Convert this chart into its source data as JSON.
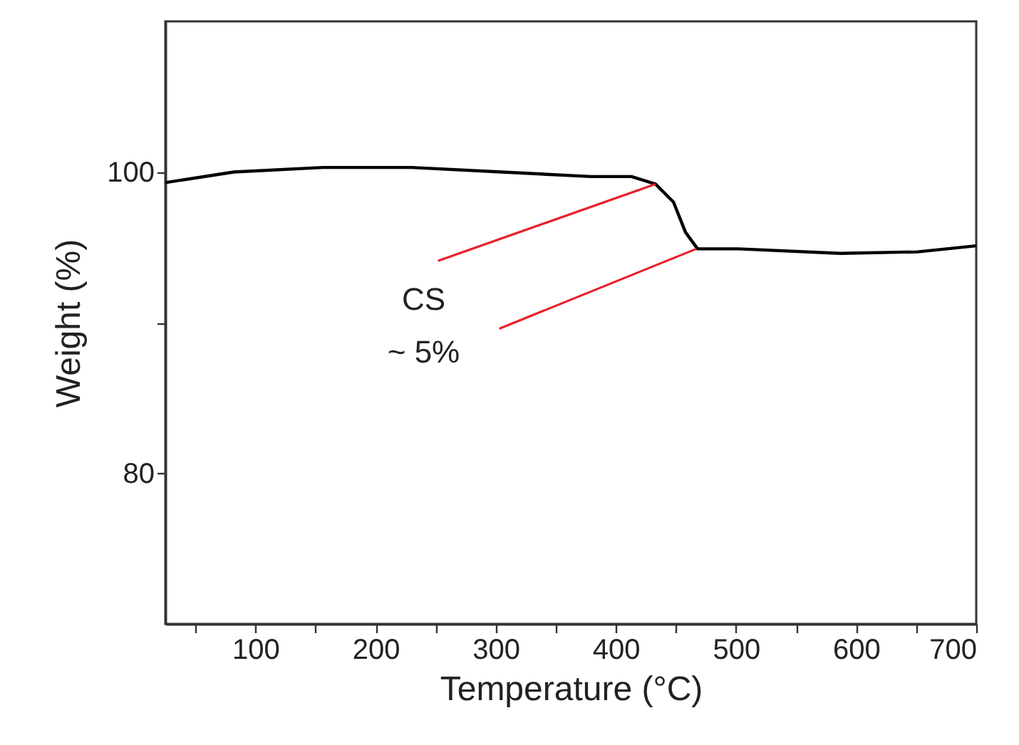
{
  "chart_data": {
    "type": "line",
    "xlabel": "Temperature (°C)",
    "ylabel": "Weight (%)",
    "annotations": [
      {
        "text": "CS",
        "x": 433,
        "y": 99.2
      },
      {
        "text": "~ 5%",
        "x": 467,
        "y": 94.9
      }
    ],
    "xlim": [
      25,
      700
    ],
    "xticks": [
      {
        "value": 50,
        "label": null
      },
      100,
      {
        "value": 150,
        "label": null
      },
      200,
      {
        "value": 250,
        "label": null
      },
      300,
      {
        "value": 350,
        "label": null
      },
      400,
      {
        "value": 450,
        "label": null
      },
      500,
      {
        "value": 550,
        "label": null
      },
      600,
      {
        "value": 650,
        "label": null
      },
      700
    ],
    "ylim": [
      70,
      110
    ],
    "yticks": [
      80,
      {
        "value": 90,
        "label": null
      },
      100
    ],
    "grid": false,
    "line_style": "solid",
    "series": [
      {
        "color": "#000000",
        "x": [
          25,
          82,
          156,
          230,
          305,
          379,
          413,
          433,
          448,
          458,
          468,
          502,
          587,
          651,
          700
        ],
        "values": [
          99.3,
          100.0,
          100.3,
          100.3,
          100.0,
          99.7,
          99.7,
          99.2,
          98.0,
          96.0,
          94.9,
          94.9,
          94.6,
          94.7,
          95.1
        ]
      }
    ]
  }
}
